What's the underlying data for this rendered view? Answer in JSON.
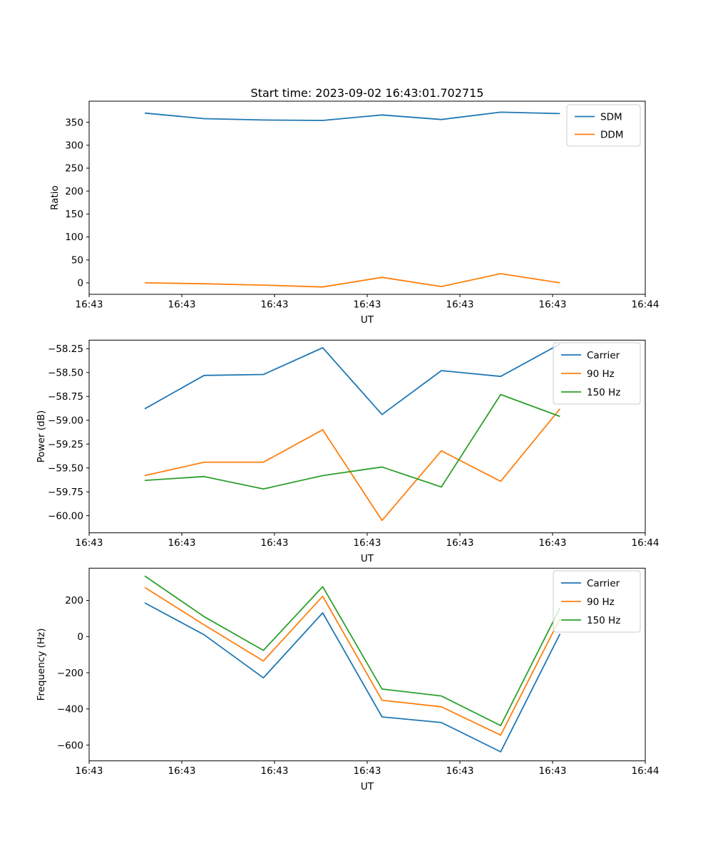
{
  "figure": {
    "title": "Start time: 2023-09-02 16:43:01.702715",
    "background": "#ffffff"
  },
  "colors": {
    "blue": "#1f77b4",
    "orange": "#ff7f0e",
    "green": "#2ca02c",
    "spine": "#000000",
    "legend_edge": "#cccccc",
    "legend_fill": "#ffffff"
  },
  "chart_data": [
    {
      "type": "line",
      "xlabel": "UT",
      "ylabel": "Ratio",
      "x_seconds": [
        6.0,
        12.4,
        18.8,
        25.2,
        31.6,
        38.0,
        44.4,
        50.8
      ],
      "xlim": [
        0,
        60
      ],
      "ylim": [
        -25,
        396
      ],
      "grid": false,
      "xticks": {
        "positions": [
          0,
          10,
          20,
          30,
          40,
          50,
          60
        ],
        "labels": [
          "16:43",
          "16:43",
          "16:43",
          "16:43",
          "16:43",
          "16:43",
          "16:44"
        ]
      },
      "yticks": {
        "values": [
          0,
          50,
          100,
          150,
          200,
          250,
          300,
          350
        ],
        "labels": [
          "0",
          "50",
          "100",
          "150",
          "200",
          "250",
          "300",
          "350"
        ]
      },
      "series": [
        {
          "name": "SDM",
          "color": "#1f77b4",
          "values": [
            370,
            358,
            355,
            354,
            366,
            356,
            372,
            369
          ]
        },
        {
          "name": "DDM",
          "color": "#ff7f0e",
          "values": [
            0,
            -2,
            -5,
            -9,
            12,
            -8,
            20,
            0
          ]
        }
      ],
      "legend": {
        "position": "upper right",
        "labels": [
          "SDM",
          "DDM"
        ]
      }
    },
    {
      "type": "line",
      "xlabel": "UT",
      "ylabel": "Power (dB)",
      "x_seconds": [
        6.0,
        12.4,
        18.8,
        25.2,
        31.6,
        38.0,
        44.4,
        50.8
      ],
      "xlim": [
        0,
        60
      ],
      "ylim": [
        -60.18,
        -58.16
      ],
      "grid": false,
      "xticks": {
        "positions": [
          0,
          10,
          20,
          30,
          40,
          50,
          60
        ],
        "labels": [
          "16:43",
          "16:43",
          "16:43",
          "16:43",
          "16:43",
          "16:43",
          "16:44"
        ]
      },
      "yticks": {
        "values": [
          -58.25,
          -58.5,
          -58.75,
          -59.0,
          -59.25,
          -59.5,
          -59.75,
          -60.0
        ],
        "labels": [
          "−58.25",
          "−58.50",
          "−58.75",
          "−59.00",
          "−59.25",
          "−59.50",
          "−59.75",
          "−60.00"
        ]
      },
      "series": [
        {
          "name": "Carrier",
          "color": "#1f77b4",
          "values": [
            -58.88,
            -58.53,
            -58.52,
            -58.24,
            -58.94,
            -58.48,
            -58.54,
            -58.2
          ]
        },
        {
          "name": "90 Hz",
          "color": "#ff7f0e",
          "values": [
            -59.58,
            -59.44,
            -59.44,
            -59.1,
            -60.05,
            -59.32,
            -59.64,
            -58.88
          ]
        },
        {
          "name": "150 Hz",
          "color": "#2ca02c",
          "values": [
            -59.63,
            -59.59,
            -59.72,
            -59.58,
            -59.49,
            -59.7,
            -58.73,
            -58.96
          ]
        }
      ],
      "legend": {
        "position": "upper right",
        "labels": [
          "Carrier",
          "90 Hz",
          "150 Hz"
        ]
      }
    },
    {
      "type": "line",
      "xlabel": "UT",
      "ylabel": "Frequency (Hz)",
      "x_seconds": [
        6.0,
        12.4,
        18.8,
        25.2,
        31.6,
        38.0,
        44.4,
        50.8
      ],
      "xlim": [
        0,
        60
      ],
      "ylim": [
        -687,
        378
      ],
      "grid": false,
      "xticks": {
        "positions": [
          0,
          10,
          20,
          30,
          40,
          50,
          60
        ],
        "labels": [
          "16:43",
          "16:43",
          "16:43",
          "16:43",
          "16:43",
          "16:43",
          "16:44"
        ]
      },
      "yticks": {
        "values": [
          -600,
          -400,
          -200,
          0,
          200
        ],
        "labels": [
          "−600",
          "−400",
          "−200",
          "0",
          "200"
        ]
      },
      "series": [
        {
          "name": "Carrier",
          "color": "#1f77b4",
          "values": [
            186,
            10,
            -228,
            131,
            -444,
            -475,
            -637,
            15
          ]
        },
        {
          "name": "90 Hz",
          "color": "#ff7f0e",
          "values": [
            272,
            65,
            -135,
            223,
            -352,
            -388,
            -545,
            100
          ]
        },
        {
          "name": "150 Hz",
          "color": "#2ca02c",
          "values": [
            335,
            110,
            -76,
            276,
            -290,
            -328,
            -492,
            158
          ]
        }
      ],
      "legend": {
        "position": "upper right",
        "labels": [
          "Carrier",
          "90 Hz",
          "150 Hz"
        ]
      }
    }
  ]
}
